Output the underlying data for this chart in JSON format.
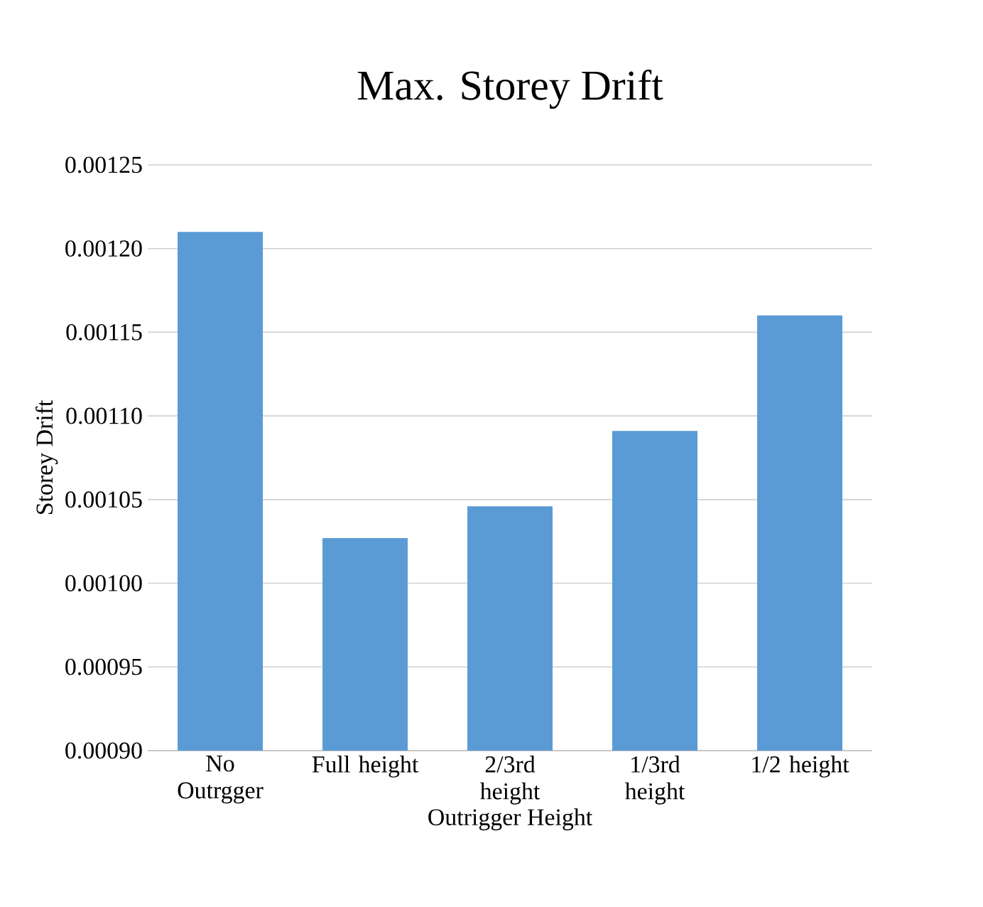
{
  "chart_data": {
    "type": "bar",
    "title": "Max. Storey Drift",
    "xlabel": "Outrigger Height",
    "ylabel": "Storey Drift",
    "categories": [
      "No Outrgger",
      "Full height",
      "2/3rd height",
      "1/3rd height",
      "1/2 height"
    ],
    "values": [
      0.00121,
      0.001027,
      0.001046,
      0.001091,
      0.00116
    ],
    "color": "#5b9bd5",
    "ylim": [
      0.0009,
      0.00125
    ],
    "yticks": [
      {
        "value": 0.0009,
        "label": "0.00090"
      },
      {
        "value": 0.00095,
        "label": "0.00095"
      },
      {
        "value": 0.001,
        "label": "0.00100"
      },
      {
        "value": 0.00105,
        "label": "0.00105"
      },
      {
        "value": 0.0011,
        "label": "0.00110"
      },
      {
        "value": 0.00115,
        "label": "0.00115"
      },
      {
        "value": 0.0012,
        "label": "0.00120"
      },
      {
        "value": 0.00125,
        "label": "0.00125"
      }
    ],
    "grid": "y"
  }
}
